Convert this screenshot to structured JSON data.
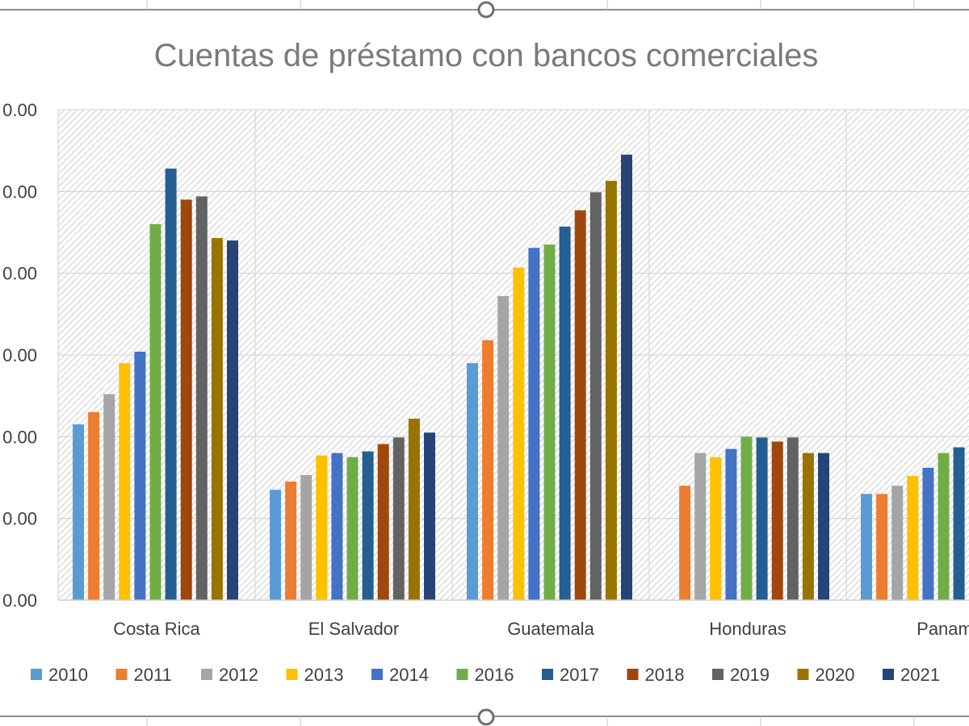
{
  "chart_data": {
    "type": "bar",
    "title": "Cuentas de préstamo con bancos comerciales",
    "categories": [
      "Costa Rica",
      "El Salvador",
      "Guatemala",
      "Honduras",
      "Panam"
    ],
    "y_tick_labels": [
      "0.00",
      "0.00",
      "0.00",
      "0.00",
      "0.00",
      "0.00",
      "0.00"
    ],
    "ylim": [
      0,
      6
    ],
    "grid": true,
    "legend_position": "bottom",
    "series": [
      {
        "name": "2010",
        "color": "#5b9bd5",
        "values": [
          2.15,
          1.35,
          2.9,
          null,
          1.3
        ]
      },
      {
        "name": "2011",
        "color": "#ed7d31",
        "values": [
          2.3,
          1.45,
          3.18,
          1.4,
          1.3
        ]
      },
      {
        "name": "2012",
        "color": "#a5a5a5",
        "values": [
          2.52,
          1.53,
          3.72,
          1.8,
          1.4
        ]
      },
      {
        "name": "2013",
        "color": "#ffc000",
        "values": [
          2.9,
          1.77,
          4.07,
          1.75,
          1.52
        ]
      },
      {
        "name": "2014",
        "color": "#4472c4",
        "values": [
          3.04,
          1.8,
          4.31,
          1.85,
          1.62
        ]
      },
      {
        "name": "2016",
        "color": "#70ad47",
        "values": [
          4.6,
          1.75,
          4.35,
          2.0,
          1.8
        ]
      },
      {
        "name": "2017",
        "color": "#255e91",
        "values": [
          5.28,
          1.82,
          4.57,
          1.99,
          1.87
        ]
      },
      {
        "name": "2018",
        "color": "#9e480e",
        "values": [
          4.9,
          1.91,
          4.77,
          1.94,
          null
        ]
      },
      {
        "name": "2019",
        "color": "#636363",
        "values": [
          4.94,
          1.99,
          4.99,
          1.99,
          null
        ]
      },
      {
        "name": "2020",
        "color": "#997300",
        "values": [
          4.43,
          2.22,
          5.13,
          1.8,
          null
        ]
      },
      {
        "name": "2021",
        "color": "#264478",
        "values": [
          4.4,
          2.05,
          5.45,
          1.8,
          null
        ]
      }
    ]
  }
}
